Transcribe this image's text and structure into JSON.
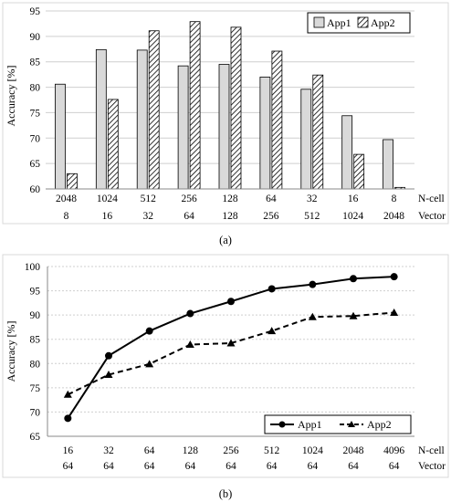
{
  "chart_data": [
    {
      "type": "bar",
      "caption": "(a)",
      "ylabel": "Accuracy [%]",
      "ylim": [
        60,
        95
      ],
      "yticks": [
        60,
        65,
        70,
        75,
        80,
        85,
        90,
        95
      ],
      "grid": true,
      "legend_position": "top-right",
      "x_row_labels": [
        "N-cell",
        "Vector"
      ],
      "categories": [
        [
          "2048",
          "8"
        ],
        [
          "1024",
          "16"
        ],
        [
          "512",
          "32"
        ],
        [
          "256",
          "64"
        ],
        [
          "128",
          "128"
        ],
        [
          "64",
          "256"
        ],
        [
          "32",
          "512"
        ],
        [
          "16",
          "1024"
        ],
        [
          "8",
          "2048"
        ]
      ],
      "series": [
        {
          "name": "App1",
          "values": [
            80.6,
            87.4,
            87.3,
            84.2,
            84.5,
            82.0,
            79.6,
            74.4,
            69.7
          ]
        },
        {
          "name": "App2",
          "values": [
            63.0,
            77.6,
            91.1,
            92.9,
            91.8,
            87.1,
            82.4,
            66.8,
            60.3
          ]
        }
      ]
    },
    {
      "type": "line",
      "caption": "(b)",
      "ylabel": "Accuracy [%]",
      "ylim": [
        65,
        100
      ],
      "yticks": [
        65,
        70,
        75,
        80,
        85,
        90,
        95,
        100
      ],
      "grid": true,
      "legend_position": "bottom-right",
      "x_row_labels": [
        "N-cell",
        "Vector"
      ],
      "categories": [
        [
          "16",
          "64"
        ],
        [
          "32",
          "64"
        ],
        [
          "64",
          "64"
        ],
        [
          "128",
          "64"
        ],
        [
          "256",
          "64"
        ],
        [
          "512",
          "64"
        ],
        [
          "1024",
          "64"
        ],
        [
          "2048",
          "64"
        ],
        [
          "4096",
          "64"
        ]
      ],
      "series": [
        {
          "name": "App1",
          "values": [
            68.7,
            81.6,
            86.7,
            90.3,
            92.8,
            95.4,
            96.3,
            97.5,
            97.9
          ]
        },
        {
          "name": "App2",
          "values": [
            73.6,
            77.7,
            79.9,
            83.9,
            84.2,
            86.7,
            89.6,
            89.8,
            90.5
          ]
        }
      ]
    }
  ]
}
